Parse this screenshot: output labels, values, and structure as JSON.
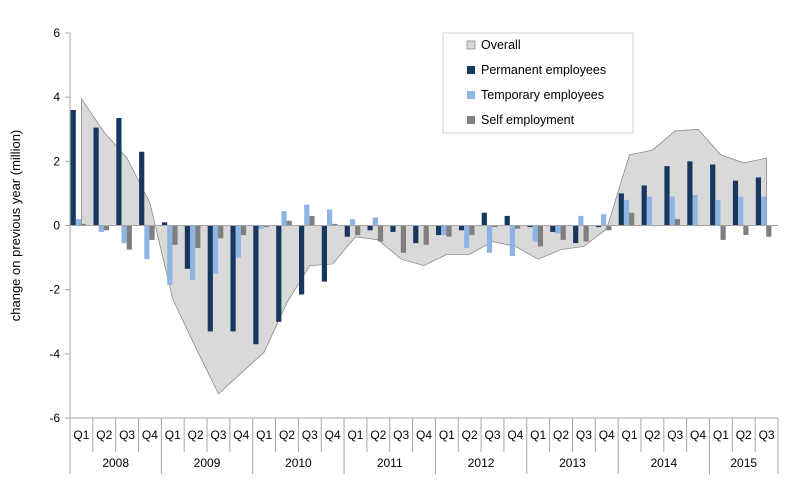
{
  "chart_data": {
    "type": "bar",
    "title": "",
    "xlabel": "",
    "ylabel": "change on previous year (million)",
    "ylim": [
      -6,
      6
    ],
    "yticks": [
      -6,
      -4,
      -2,
      0,
      2,
      4,
      6
    ],
    "grid": false,
    "legend_position": "top-right",
    "quarters": [
      "Q1",
      "Q2",
      "Q3",
      "Q4",
      "Q1",
      "Q2",
      "Q3",
      "Q4",
      "Q1",
      "Q2",
      "Q3",
      "Q4",
      "Q1",
      "Q2",
      "Q3",
      "Q4",
      "Q1",
      "Q2",
      "Q3",
      "Q4",
      "Q1",
      "Q2",
      "Q3",
      "Q4",
      "Q1",
      "Q2",
      "Q3",
      "Q4",
      "Q1",
      "Q2",
      "Q3"
    ],
    "years": [
      {
        "label": "2008",
        "count": 4
      },
      {
        "label": "2009",
        "count": 4
      },
      {
        "label": "2010",
        "count": 4
      },
      {
        "label": "2011",
        "count": 4
      },
      {
        "label": "2012",
        "count": 4
      },
      {
        "label": "2013",
        "count": 4
      },
      {
        "label": "2014",
        "count": 4
      },
      {
        "label": "2015",
        "count": 3
      }
    ],
    "series": [
      {
        "name": "Overall",
        "kind": "area",
        "color": "#d9d9d9",
        "stroke": "#8c8c8c",
        "values": [
          3.95,
          2.9,
          2.1,
          0.7,
          -2.3,
          -3.8,
          -5.25,
          -4.6,
          -3.95,
          -2.4,
          -1.25,
          -1.2,
          -0.35,
          -0.45,
          -1.05,
          -1.25,
          -0.9,
          -0.9,
          -0.5,
          -0.65,
          -1.05,
          -0.75,
          -0.65,
          -0.1,
          2.2,
          2.35,
          2.95,
          3.0,
          2.2,
          1.95,
          2.1
        ]
      },
      {
        "name": "Permanent employees",
        "kind": "bar",
        "color": "#17375e",
        "values": [
          3.6,
          3.05,
          3.35,
          2.3,
          0.1,
          -1.35,
          -3.3,
          -3.3,
          -3.7,
          -3.0,
          -2.15,
          -1.75,
          -0.35,
          -0.15,
          -0.2,
          -0.55,
          -0.3,
          -0.15,
          0.4,
          0.3,
          -0.05,
          -0.2,
          -0.55,
          -0.05,
          1.0,
          1.25,
          1.85,
          2.0,
          1.9,
          1.4,
          1.5
        ]
      },
      {
        "name": "Temporary employees",
        "kind": "bar",
        "color": "#8eb4e3",
        "values": [
          0.2,
          -0.2,
          -0.55,
          -1.05,
          -1.85,
          -1.7,
          -1.5,
          -1.0,
          -0.1,
          0.45,
          0.65,
          0.5,
          0.2,
          0.25,
          0.0,
          0.0,
          -0.3,
          -0.7,
          -0.85,
          -0.95,
          -0.5,
          -0.25,
          0.3,
          0.35,
          0.8,
          0.9,
          0.9,
          0.95,
          0.8,
          0.9,
          0.9
        ]
      },
      {
        "name": "Self employment",
        "kind": "bar",
        "color": "#7f7f7f",
        "values": [
          0.05,
          -0.15,
          -0.75,
          -0.45,
          -0.6,
          -0.7,
          -0.4,
          -0.3,
          -0.05,
          0.15,
          0.3,
          0.05,
          -0.3,
          -0.5,
          -0.85,
          -0.6,
          -0.35,
          -0.3,
          -0.05,
          -0.1,
          -0.65,
          -0.45,
          -0.5,
          -0.15,
          0.4,
          0.0,
          0.2,
          0.0,
          -0.45,
          -0.3,
          -0.35
        ]
      }
    ]
  }
}
